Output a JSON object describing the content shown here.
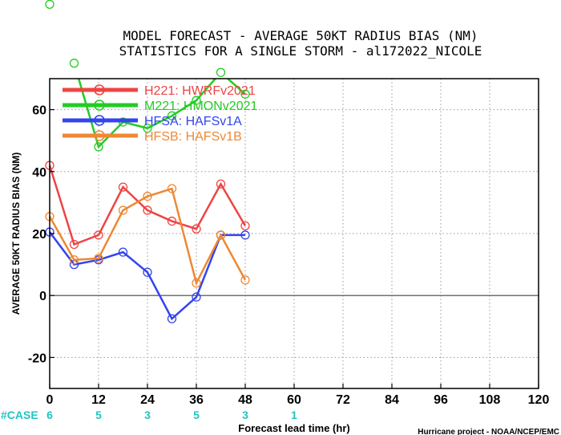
{
  "chart_data": {
    "type": "line",
    "title": "MODEL FORECAST - AVERAGE 50KT RADIUS BIAS (NM)",
    "subtitle": "STATISTICS FOR A SINGLE STORM - al172022_NICOLE",
    "xlabel": "Forecast lead time (hr)",
    "ylabel": "AVERAGE 50KT RADIUS BIAS (NM)",
    "xlim": [
      0,
      120
    ],
    "ylim": [
      -30,
      70
    ],
    "x_ticks": [
      0,
      12,
      24,
      36,
      48,
      60,
      72,
      84,
      96,
      108,
      120
    ],
    "y_ticks": [
      -20,
      0,
      20,
      40,
      60
    ],
    "x_tick_labels": [
      "0",
      "12",
      "24",
      "36",
      "48",
      "60",
      "72",
      "84",
      "96",
      "108",
      "120"
    ],
    "y_tick_labels": [
      "-20",
      "0",
      "20",
      "40",
      "60"
    ],
    "grid": true,
    "legend_position": "top-left",
    "series": [
      {
        "name": "H221: HWRFv2021",
        "color": "#ee4444",
        "x": [
          0,
          6,
          12,
          18,
          24,
          30,
          36,
          42,
          48
        ],
        "y": [
          42,
          16.5,
          19.5,
          35,
          27.5,
          24,
          21.5,
          36,
          22.5
        ]
      },
      {
        "name": "M221: HMONv2021",
        "color": "#22cc22",
        "x": [
          0,
          6,
          12,
          18,
          24,
          30,
          36,
          42,
          48
        ],
        "y": [
          94,
          75,
          48,
          56,
          54,
          58,
          63,
          72,
          65
        ]
      },
      {
        "name": "HFSA: HAFSv1A",
        "color": "#3344ee",
        "x": [
          0,
          6,
          12,
          18,
          24,
          30,
          36,
          42,
          48
        ],
        "y": [
          20.5,
          10,
          11.5,
          14,
          7.5,
          -7.5,
          -0.5,
          19.5,
          19.5
        ]
      },
      {
        "name": "HFSB: HAFSv1B",
        "color": "#ee8833",
        "x": [
          0,
          6,
          12,
          18,
          24,
          30,
          36,
          42,
          48
        ],
        "y": [
          25.5,
          11.5,
          12,
          27.5,
          32,
          34.5,
          4,
          19.5,
          5
        ]
      }
    ],
    "cases_label": "#CASE",
    "cases": [
      {
        "x": 0,
        "n": "6"
      },
      {
        "x": 12,
        "n": "5"
      },
      {
        "x": 24,
        "n": "3"
      },
      {
        "x": 36,
        "n": "5"
      },
      {
        "x": 48,
        "n": "3"
      },
      {
        "x": 60,
        "n": "1"
      }
    ],
    "credit": "Hurricane project - NOAA/NCEP/EMC"
  }
}
